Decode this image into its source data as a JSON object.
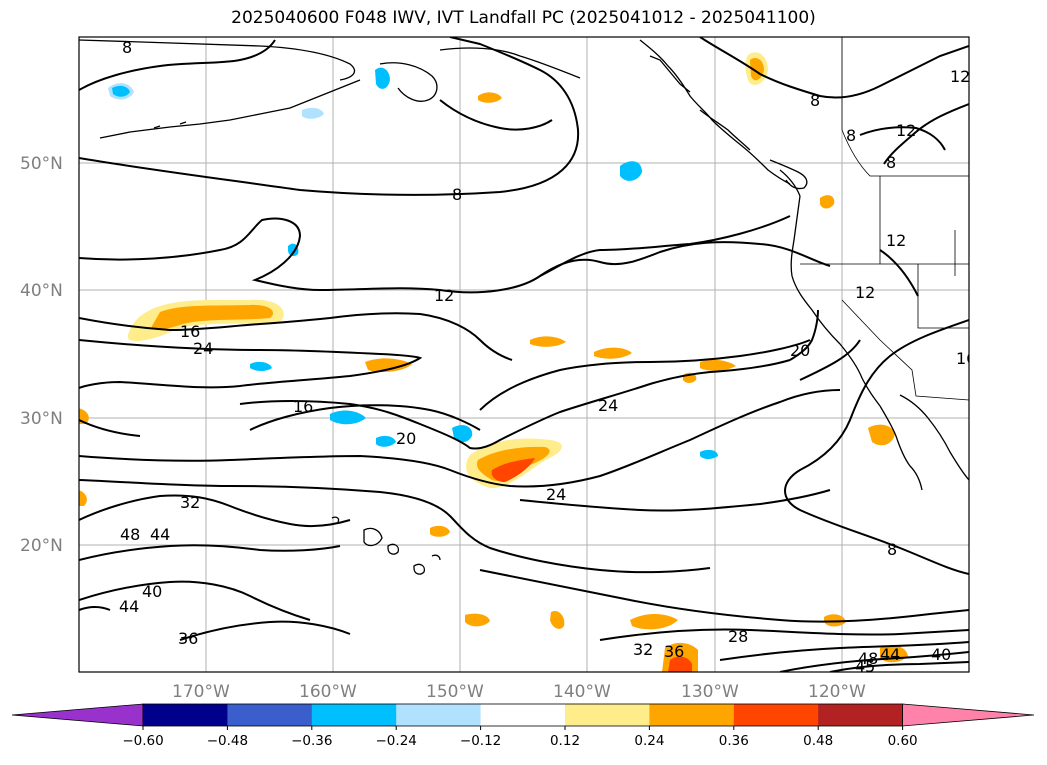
{
  "title": "2025040600 F048 IWV, IVT Landfall PC (2025041012 - 2025041100)",
  "map": {
    "lat_labels": [
      "50°N",
      "40°N",
      "30°N",
      "20°N"
    ],
    "lon_labels": [
      "170°W",
      "160°W",
      "150°W",
      "140°W",
      "130°W",
      "120°W"
    ]
  },
  "contour_labels": [
    "8",
    "8",
    "8",
    "8",
    "8",
    "8",
    "12",
    "12",
    "12",
    "12",
    "12",
    "16",
    "16",
    "20",
    "20",
    "24",
    "24",
    "24",
    "28",
    "32",
    "32",
    "36",
    "36",
    "40",
    "40",
    "44",
    "44",
    "44",
    "45",
    "48",
    "48",
    "16"
  ],
  "colorbar": {
    "colors": [
      "#9932cc",
      "#00008b",
      "#3a5fcd",
      "#00bfff",
      "#b0e2ff",
      "#ffffff",
      "#ffec8b",
      "#ffa500",
      "#ff4500",
      "#b22222",
      "#ff82ab"
    ],
    "tick_labels": [
      "−0.60",
      "−0.48",
      "−0.36",
      "−0.24",
      "−0.12",
      "0.12",
      "0.24",
      "0.36",
      "0.48",
      "0.60"
    ]
  }
}
